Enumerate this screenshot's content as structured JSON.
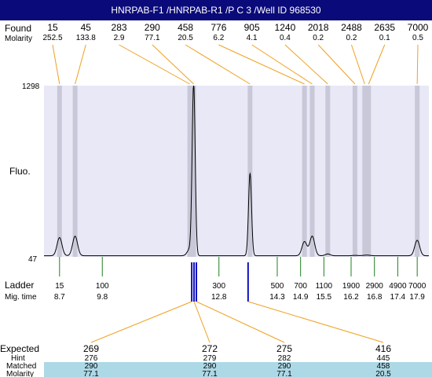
{
  "title": "HNRPAB-F1 /HNRPAB-R1 /P C 3 /Well ID 968530",
  "labels": {
    "found": "Found",
    "molarity": "Molarity",
    "fluo": "Fluo.",
    "ladder": "Ladder",
    "mig_time": "Mig. time",
    "expected": "Expected",
    "hint": "Hint",
    "matched": "Matched",
    "molarity_bottom": "Molarity"
  },
  "colors": {
    "title_bg": "#0a0a7a",
    "plot_bg": "#e8e8f6",
    "band": "#c8c8d8",
    "leader": "#f0a020",
    "ladder_tick": "#208020",
    "marker": "#1010c0",
    "matched_bg": "#add8e6"
  },
  "chart_data": {
    "type": "line",
    "ylabel": "Fluo.",
    "ylim": [
      47,
      1298
    ],
    "y_ticks": [
      "1298",
      "47"
    ],
    "x_axis": "migration time",
    "xlim": [
      8.3,
      18.2
    ],
    "ladder": [
      {
        "size": "15",
        "time": 8.7
      },
      {
        "size": "100",
        "time": 9.8
      },
      {
        "size": "300",
        "time": 12.8
      },
      {
        "size": "500",
        "time": 14.3
      },
      {
        "size": "700",
        "time": 14.9
      },
      {
        "size": "1100",
        "time": 15.5
      },
      {
        "size": "1900",
        "time": 16.2
      },
      {
        "size": "2900",
        "time": 16.8
      },
      {
        "size": "4900",
        "time": 17.4
      },
      {
        "size": "7000",
        "time": 17.9
      }
    ],
    "found_peaks": [
      {
        "size": "15",
        "molarity": "252.5",
        "time": 8.7,
        "height": 180
      },
      {
        "size": "45",
        "molarity": "133.8",
        "time": 9.1,
        "height": 190
      },
      {
        "size": "283",
        "molarity": "2.9",
        "time": 12.05,
        "height": 95
      },
      {
        "size": "290",
        "molarity": "77.1",
        "time": 12.15,
        "height": 1298
      },
      {
        "size": "458",
        "molarity": "20.5",
        "time": 13.6,
        "height": 650
      },
      {
        "size": "776",
        "molarity": "6.2",
        "time": 15.0,
        "height": 150
      },
      {
        "size": "905",
        "molarity": "4.1",
        "time": 15.2,
        "height": 190
      },
      {
        "size": "1240",
        "molarity": "0.4",
        "time": 15.6,
        "height": 60
      },
      {
        "size": "2018",
        "molarity": "0.2",
        "time": 16.3,
        "height": 50
      },
      {
        "size": "2488",
        "molarity": "0.2",
        "time": 16.55,
        "height": 50
      },
      {
        "size": "2635",
        "molarity": "0.1",
        "time": 16.65,
        "height": 50
      },
      {
        "size": "7000",
        "molarity": "0.5",
        "time": 17.9,
        "height": 160
      }
    ],
    "markers": [
      12.1,
      12.16,
      12.22,
      13.55
    ],
    "expected": [
      {
        "expected": "269",
        "hint": "276",
        "matched": "290",
        "molarity": "77.1",
        "time": 12.1
      },
      {
        "expected": "272",
        "hint": "279",
        "matched": "290",
        "molarity": "77.1",
        "time": 12.16
      },
      {
        "expected": "275",
        "hint": "282",
        "matched": "290",
        "molarity": "77.1",
        "time": 12.22
      },
      {
        "expected": "416",
        "hint": "445",
        "matched": "458",
        "molarity": "20.5",
        "time": 13.55
      }
    ]
  }
}
